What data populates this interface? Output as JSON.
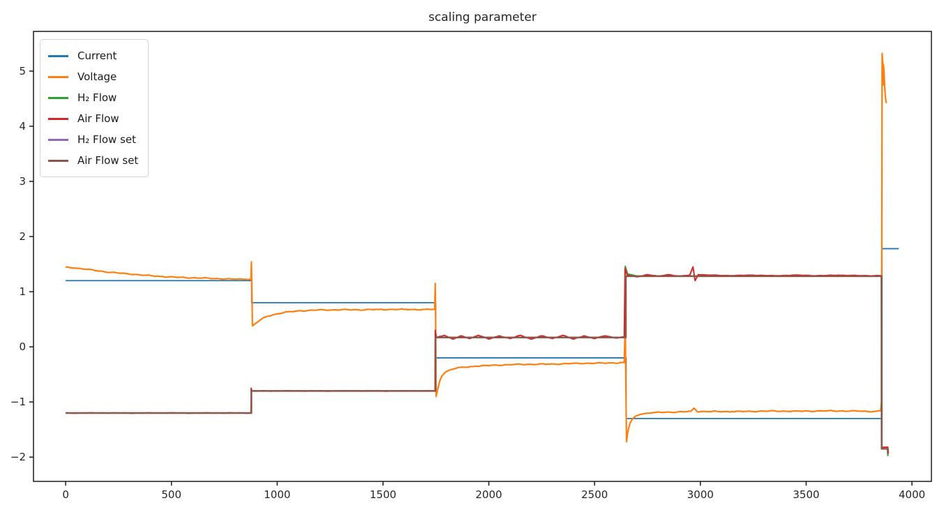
{
  "chart_data": {
    "type": "line",
    "title": "scaling parameter",
    "xlabel": "",
    "ylabel": "",
    "xlim": [
      -152,
      4092
    ],
    "ylim": [
      -2.44,
      5.72
    ],
    "x_ticks": [
      0,
      500,
      1000,
      1500,
      2000,
      2500,
      3000,
      3500,
      4000
    ],
    "y_ticks": [
      -2,
      -1,
      0,
      1,
      2,
      3,
      4,
      5
    ],
    "grid": false,
    "legend_position": "upper-left",
    "background": "#ffffff",
    "axis_color": "#1a1a1a",
    "text_color": "#262626",
    "legend_border_color": "#d5d5d5",
    "series": [
      {
        "name": "Current",
        "color": "#1f77b4",
        "width": 1.8,
        "noise": 0,
        "seed": 1,
        "points": [
          [
            0,
            1.2
          ],
          [
            879,
            1.2
          ],
          [
            879,
            0.8
          ],
          [
            1749,
            0.8
          ],
          [
            1749,
            -0.2
          ],
          [
            2649,
            -0.2
          ],
          [
            2649,
            -1.3
          ],
          [
            3858,
            -1.3
          ],
          [
            3858,
            1.78
          ],
          [
            3938,
            1.78
          ]
        ]
      },
      {
        "name": "Voltage",
        "color": "#ff7f0e",
        "width": 2.2,
        "noise": 0.013,
        "seed": 7,
        "points": [
          [
            0,
            1.44
          ],
          [
            40,
            1.43
          ],
          [
            90,
            1.41
          ],
          [
            150,
            1.38
          ],
          [
            220,
            1.35
          ],
          [
            300,
            1.32
          ],
          [
            380,
            1.295
          ],
          [
            460,
            1.275
          ],
          [
            540,
            1.26
          ],
          [
            620,
            1.248
          ],
          [
            700,
            1.238
          ],
          [
            780,
            1.231
          ],
          [
            850,
            1.226
          ],
          [
            872,
            1.225
          ],
          [
            876,
            1.24
          ],
          [
            878,
            1.54
          ],
          [
            880,
            1.1
          ],
          [
            883,
            0.38
          ],
          [
            900,
            0.43
          ],
          [
            925,
            0.5
          ],
          [
            955,
            0.555
          ],
          [
            1000,
            0.6
          ],
          [
            1050,
            0.635
          ],
          [
            1110,
            0.655
          ],
          [
            1180,
            0.665
          ],
          [
            1260,
            0.67
          ],
          [
            1360,
            0.674
          ],
          [
            1480,
            0.676
          ],
          [
            1600,
            0.678
          ],
          [
            1700,
            0.679
          ],
          [
            1744,
            0.68
          ],
          [
            1747,
            1.15
          ],
          [
            1749,
            0.3
          ],
          [
            1751,
            -0.9
          ],
          [
            1758,
            -0.78
          ],
          [
            1768,
            -0.62
          ],
          [
            1780,
            -0.52
          ],
          [
            1795,
            -0.46
          ],
          [
            1815,
            -0.42
          ],
          [
            1845,
            -0.39
          ],
          [
            1885,
            -0.37
          ],
          [
            1940,
            -0.35
          ],
          [
            2010,
            -0.335
          ],
          [
            2090,
            -0.325
          ],
          [
            2180,
            -0.318
          ],
          [
            2280,
            -0.312
          ],
          [
            2390,
            -0.305
          ],
          [
            2500,
            -0.297
          ],
          [
            2590,
            -0.29
          ],
          [
            2640,
            -0.285
          ],
          [
            2645,
            0.42
          ],
          [
            2648,
            -0.8
          ],
          [
            2651,
            -1.72
          ],
          [
            2658,
            -1.52
          ],
          [
            2668,
            -1.38
          ],
          [
            2680,
            -1.3
          ],
          [
            2695,
            -1.255
          ],
          [
            2715,
            -1.225
          ],
          [
            2745,
            -1.205
          ],
          [
            2790,
            -1.19
          ],
          [
            2850,
            -1.182
          ],
          [
            2920,
            -1.178
          ],
          [
            2955,
            -1.17
          ],
          [
            2970,
            -1.11
          ],
          [
            2985,
            -1.175
          ],
          [
            3050,
            -1.175
          ],
          [
            3150,
            -1.172
          ],
          [
            3300,
            -1.168
          ],
          [
            3450,
            -1.165
          ],
          [
            3600,
            -1.163
          ],
          [
            3750,
            -1.165
          ],
          [
            3830,
            -1.17
          ],
          [
            3852,
            -1.16
          ],
          [
            3856,
            -1.0
          ],
          [
            3858,
            3.0
          ],
          [
            3859,
            5.32
          ],
          [
            3862,
            5.15
          ],
          [
            3864,
            4.75
          ],
          [
            3865,
            5.12
          ],
          [
            3868,
            5.0
          ],
          [
            3871,
            4.72
          ],
          [
            3874,
            4.55
          ],
          [
            3877,
            4.45
          ],
          [
            3880,
            4.42
          ]
        ]
      },
      {
        "name": "H₂ Flow",
        "color": "#2ca02c",
        "width": 2.0,
        "noise": 0,
        "seed": 3,
        "points": [
          [
            0,
            -1.2
          ],
          [
            877,
            -1.2
          ],
          [
            877,
            -0.8
          ],
          [
            1747,
            -0.8
          ],
          [
            1747,
            0.17
          ],
          [
            2645,
            0.17
          ],
          [
            2645,
            1.46
          ],
          [
            2656,
            1.32
          ],
          [
            2700,
            1.285
          ],
          [
            3855,
            1.285
          ],
          [
            3856,
            -1.85
          ],
          [
            3884,
            -1.85
          ],
          [
            3886,
            -1.97
          ],
          [
            3889,
            -1.97
          ]
        ]
      },
      {
        "name": "Air Flow",
        "color": "#d62728",
        "width": 2.0,
        "noise": 0.006,
        "seed": 13,
        "points": [
          [
            0,
            -1.2
          ],
          [
            876,
            -1.2
          ],
          [
            877,
            -0.75
          ],
          [
            880,
            -0.8
          ],
          [
            1746,
            -0.8
          ],
          [
            1747,
            0.3
          ],
          [
            1752,
            0.17
          ],
          [
            1790,
            0.21
          ],
          [
            1830,
            0.14
          ],
          [
            1870,
            0.2
          ],
          [
            1910,
            0.15
          ],
          [
            1950,
            0.21
          ],
          [
            2000,
            0.14
          ],
          [
            2050,
            0.2
          ],
          [
            2100,
            0.15
          ],
          [
            2150,
            0.21
          ],
          [
            2200,
            0.14
          ],
          [
            2250,
            0.2
          ],
          [
            2300,
            0.15
          ],
          [
            2350,
            0.21
          ],
          [
            2400,
            0.14
          ],
          [
            2450,
            0.2
          ],
          [
            2500,
            0.15
          ],
          [
            2550,
            0.2
          ],
          [
            2600,
            0.16
          ],
          [
            2640,
            0.18
          ],
          [
            2644,
            1.42
          ],
          [
            2655,
            1.3
          ],
          [
            2700,
            1.27
          ],
          [
            2750,
            1.31
          ],
          [
            2800,
            1.28
          ],
          [
            2850,
            1.31
          ],
          [
            2900,
            1.28
          ],
          [
            2950,
            1.3
          ],
          [
            2965,
            1.45
          ],
          [
            2975,
            1.2
          ],
          [
            2990,
            1.31
          ],
          [
            3050,
            1.3
          ],
          [
            3150,
            1.29
          ],
          [
            3250,
            1.3
          ],
          [
            3350,
            1.29
          ],
          [
            3450,
            1.3
          ],
          [
            3550,
            1.29
          ],
          [
            3650,
            1.3
          ],
          [
            3750,
            1.29
          ],
          [
            3850,
            1.29
          ],
          [
            3856,
            1.29
          ],
          [
            3858,
            -1.82
          ],
          [
            3886,
            -1.82
          ],
          [
            3888,
            -1.94
          ]
        ]
      },
      {
        "name": "H₂ Flow set",
        "color": "#9467bd",
        "width": 1.8,
        "noise": 0,
        "seed": 5,
        "points": [
          [
            0,
            -1.2
          ],
          [
            878,
            -1.2
          ],
          [
            878,
            -0.8
          ],
          [
            1748,
            -0.8
          ],
          [
            1748,
            0.17
          ],
          [
            2648,
            0.17
          ],
          [
            2648,
            1.28
          ],
          [
            3857,
            1.28
          ],
          [
            3857,
            -1.85
          ],
          [
            3886,
            -1.85
          ],
          [
            3887,
            -1.9
          ]
        ]
      },
      {
        "name": "Air Flow set",
        "color": "#8c564b",
        "width": 2.4,
        "noise": 0,
        "seed": 9,
        "points": [
          [
            0,
            -1.2
          ],
          [
            878,
            -1.2
          ],
          [
            878,
            -0.8
          ],
          [
            1748,
            -0.8
          ],
          [
            1748,
            0.17
          ],
          [
            2648,
            0.17
          ],
          [
            2648,
            1.28
          ],
          [
            3857,
            1.28
          ],
          [
            3857,
            -1.85
          ],
          [
            3886,
            -1.85
          ],
          [
            3887,
            -1.9
          ]
        ]
      }
    ]
  }
}
